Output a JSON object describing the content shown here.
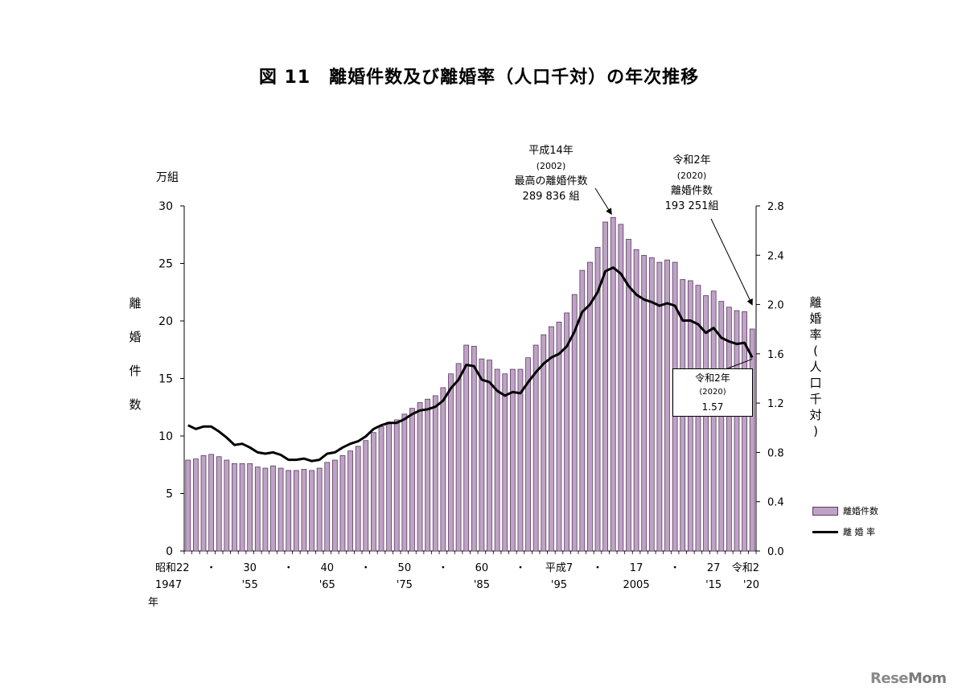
{
  "title": "図 11　離婚件数及び離婚率（人口千対）の年次推移",
  "left_unit": "万組",
  "left_axis_label": [
    "離",
    "婚",
    "件",
    "数"
  ],
  "right_axis_label": [
    "離",
    "婚",
    "率",
    "(",
    "人",
    "口",
    "千",
    "対",
    ")"
  ],
  "x_axis_year_label": "年",
  "annotation_peak": {
    "line1": "平成14年",
    "line2": "(2002)",
    "line3": "最高の離婚件数",
    "line4": "289 836 組"
  },
  "annotation_2020_count": {
    "line1": "令和2年",
    "line2": "(2020)",
    "line3": "離婚件数",
    "line4": "193 251組"
  },
  "annotation_2020_rate": {
    "line1": "令和2年",
    "line2": "(2020)",
    "line3": "1.57"
  },
  "legend": {
    "bar_label": "離婚件数",
    "line_label": "離 婚 率"
  },
  "logo": {
    "part1": "Rese",
    "part2": "Mom"
  },
  "colors": {
    "bar_fill": "#bfa3c6",
    "bar_stroke": "#5a3a60",
    "line": "#000000"
  },
  "chart_data": {
    "type": "bar",
    "title": "離婚件数及び離婚率（人口千対）の年次推移",
    "x": [
      1947,
      1948,
      1949,
      1950,
      1951,
      1952,
      1953,
      1954,
      1955,
      1956,
      1957,
      1958,
      1959,
      1960,
      1961,
      1962,
      1963,
      1964,
      1965,
      1966,
      1967,
      1968,
      1969,
      1970,
      1971,
      1972,
      1973,
      1974,
      1975,
      1976,
      1977,
      1978,
      1979,
      1980,
      1981,
      1982,
      1983,
      1984,
      1985,
      1986,
      1987,
      1988,
      1989,
      1990,
      1991,
      1992,
      1993,
      1994,
      1995,
      1996,
      1997,
      1998,
      1999,
      2000,
      2001,
      2002,
      2003,
      2004,
      2005,
      2006,
      2007,
      2008,
      2009,
      2010,
      2011,
      2012,
      2013,
      2014,
      2015,
      2016,
      2017,
      2018,
      2019,
      2020
    ],
    "series": [
      {
        "name": "離婚件数",
        "axis": "left",
        "unit": "万組",
        "values": [
          7.9,
          8.0,
          8.3,
          8.4,
          8.2,
          7.9,
          7.6,
          7.6,
          7.6,
          7.3,
          7.2,
          7.4,
          7.2,
          7.0,
          7.0,
          7.1,
          7.0,
          7.2,
          7.7,
          7.9,
          8.3,
          8.7,
          9.1,
          9.6,
          10.3,
          10.8,
          11.2,
          11.4,
          11.9,
          12.4,
          12.9,
          13.2,
          13.5,
          14.2,
          15.4,
          16.3,
          17.9,
          17.8,
          16.7,
          16.6,
          15.8,
          15.4,
          15.8,
          15.8,
          16.8,
          17.9,
          18.8,
          19.5,
          19.9,
          20.7,
          22.3,
          24.4,
          25.1,
          26.4,
          28.6,
          29.0,
          28.4,
          27.1,
          26.2,
          25.7,
          25.5,
          25.1,
          25.3,
          25.1,
          23.6,
          23.5,
          23.1,
          22.2,
          22.6,
          21.7,
          21.2,
          20.9,
          20.8,
          19.3
        ]
      },
      {
        "name": "離 婚 率",
        "axis": "right",
        "unit": "人口千対",
        "values": [
          1.02,
          0.99,
          1.01,
          1.01,
          0.97,
          0.92,
          0.86,
          0.87,
          0.84,
          0.8,
          0.79,
          0.8,
          0.78,
          0.74,
          0.74,
          0.75,
          0.73,
          0.74,
          0.79,
          0.8,
          0.84,
          0.87,
          0.89,
          0.93,
          0.99,
          1.02,
          1.04,
          1.04,
          1.07,
          1.11,
          1.14,
          1.15,
          1.17,
          1.22,
          1.32,
          1.39,
          1.51,
          1.5,
          1.39,
          1.37,
          1.3,
          1.26,
          1.29,
          1.28,
          1.37,
          1.45,
          1.52,
          1.57,
          1.6,
          1.66,
          1.78,
          1.94,
          2.0,
          2.1,
          2.27,
          2.3,
          2.25,
          2.15,
          2.08,
          2.04,
          2.02,
          1.99,
          2.01,
          1.99,
          1.87,
          1.87,
          1.84,
          1.77,
          1.81,
          1.73,
          1.7,
          1.68,
          1.69,
          1.57
        ]
      }
    ],
    "left_ylim": [
      0,
      30
    ],
    "left_ticks": [
      "0",
      "5",
      "10",
      "15",
      "20",
      "25",
      "30"
    ],
    "right_ylim": [
      0,
      2.8
    ],
    "right_ticks": [
      "0.0",
      "0.4",
      "0.8",
      "1.2",
      "1.6",
      "2.0",
      "2.4",
      "2.8"
    ],
    "x_tick_labels": [
      {
        "index": 0,
        "top": "昭和22",
        "bottom": "1947"
      },
      {
        "index": 3,
        "top": "・",
        "bottom": ""
      },
      {
        "index": 8,
        "top": "30",
        "bottom": "'55"
      },
      {
        "index": 13,
        "top": "・",
        "bottom": ""
      },
      {
        "index": 18,
        "top": "40",
        "bottom": "'65"
      },
      {
        "index": 23,
        "top": "・",
        "bottom": ""
      },
      {
        "index": 28,
        "top": "50",
        "bottom": "'75"
      },
      {
        "index": 33,
        "top": "・",
        "bottom": ""
      },
      {
        "index": 38,
        "top": "60",
        "bottom": "'85"
      },
      {
        "index": 43,
        "top": "・",
        "bottom": ""
      },
      {
        "index": 48,
        "top": "平成7",
        "bottom": "'95"
      },
      {
        "index": 53,
        "top": "・",
        "bottom": ""
      },
      {
        "index": 58,
        "top": "17",
        "bottom": "2005"
      },
      {
        "index": 63,
        "top": "・",
        "bottom": ""
      },
      {
        "index": 68,
        "top": "27",
        "bottom": "'15"
      },
      {
        "index": 73,
        "top": "令和2",
        "bottom": "'20"
      }
    ],
    "legend_position": "right"
  }
}
